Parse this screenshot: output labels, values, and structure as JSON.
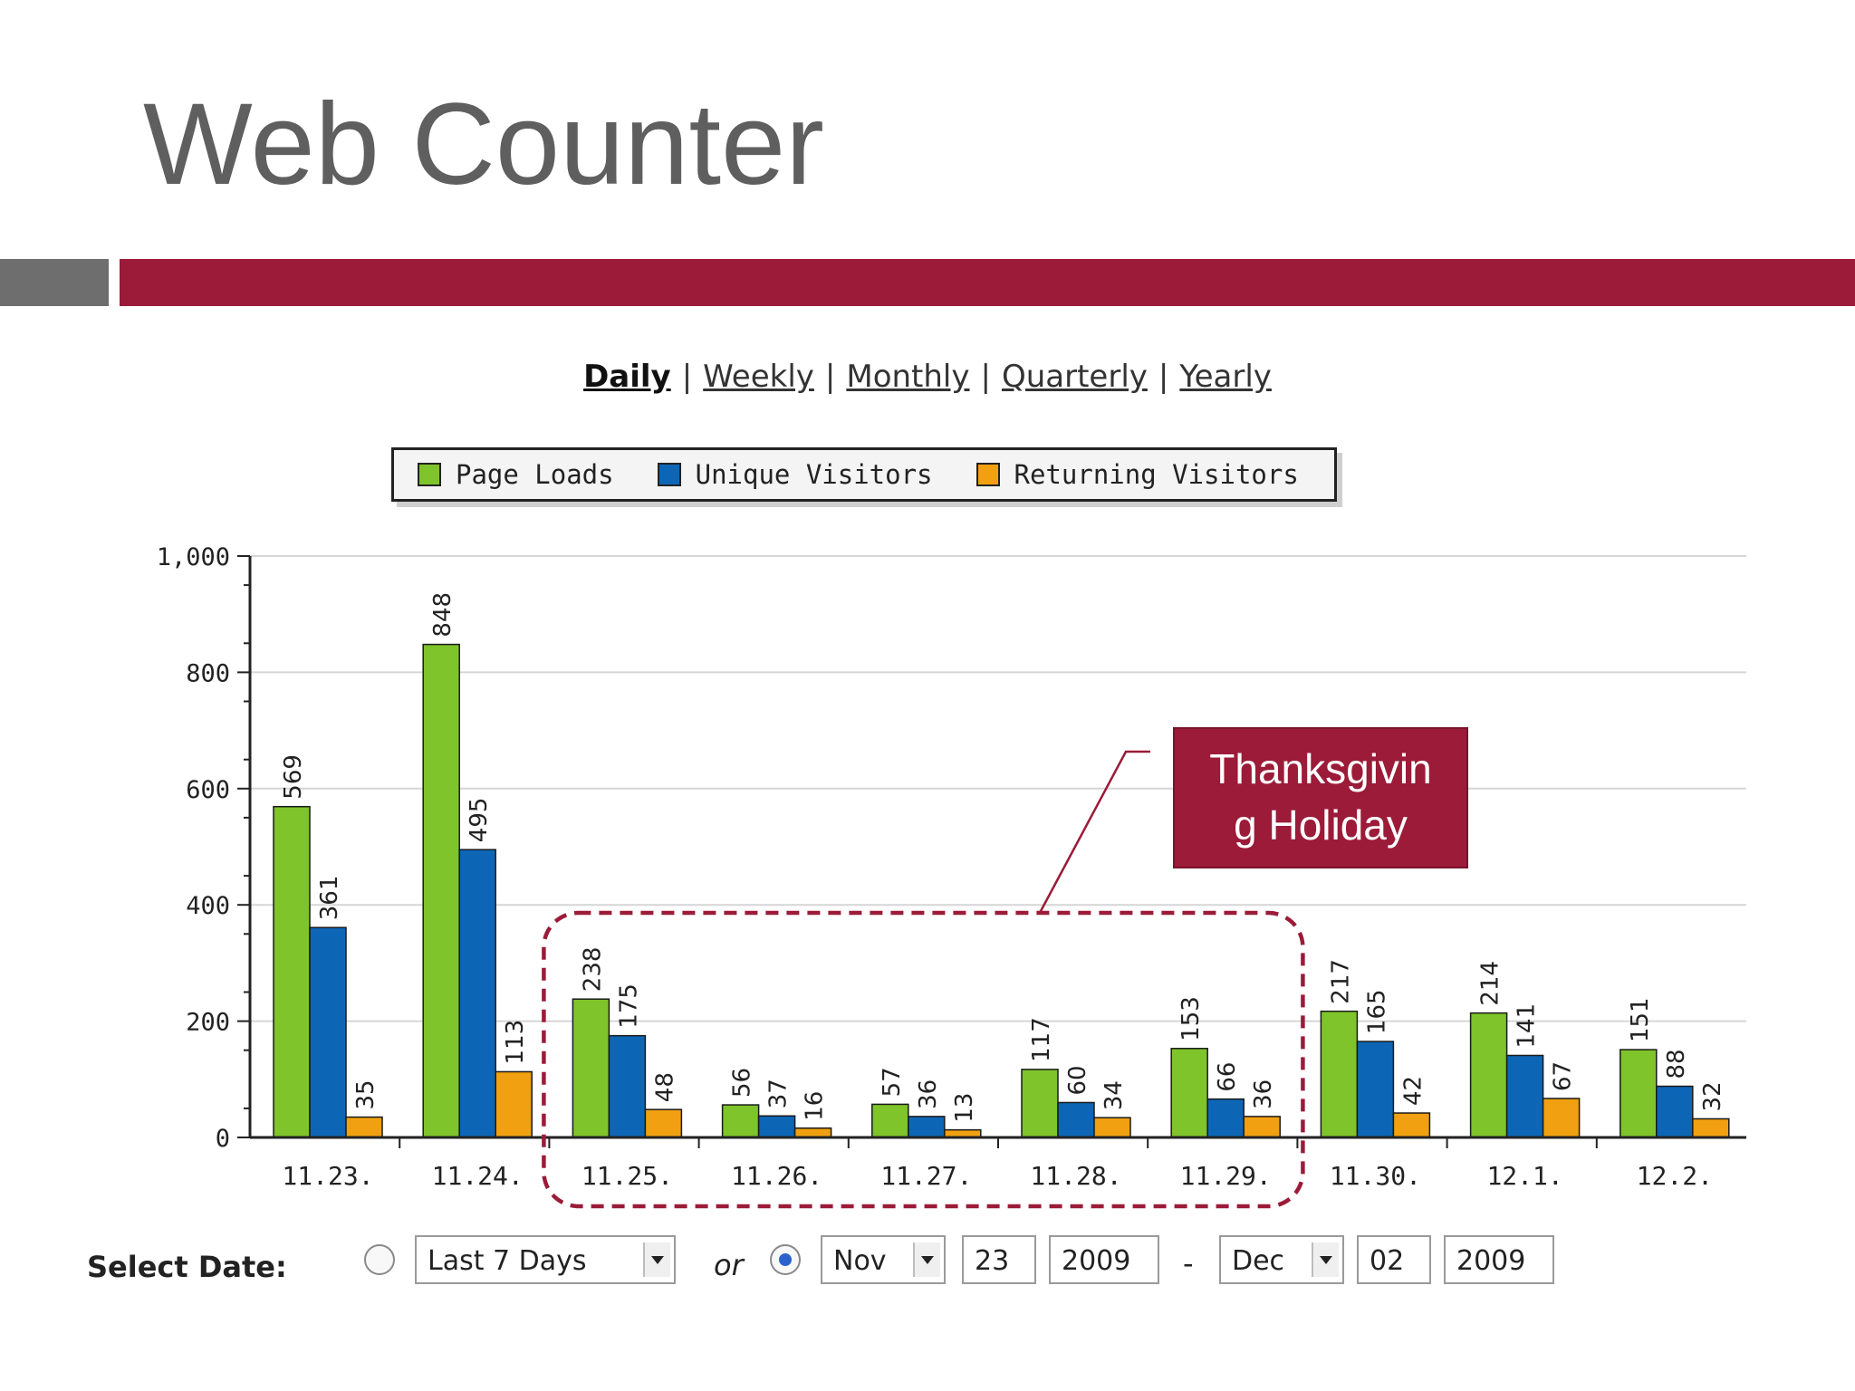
{
  "slide": {
    "title": "Web Counter",
    "colors": {
      "accent_red": "#9b1b38",
      "accent_grey": "#6e6e6e",
      "title_grey": "#5f5f5f"
    }
  },
  "nav": {
    "daily": "Daily",
    "weekly": "Weekly",
    "monthly": "Monthly",
    "quarterly": "Quarterly",
    "yearly": "Yearly",
    "separator": "|",
    "active": "Daily"
  },
  "annotation": {
    "text_line1": "Thanksgivin",
    "text_line2": "g Holiday",
    "highlighted_categories": [
      "11.25.",
      "11.26.",
      "11.27.",
      "11.28.",
      "11.29."
    ]
  },
  "chart_data": {
    "type": "bar",
    "title": "",
    "xlabel": "",
    "ylabel": "",
    "ylim": [
      0,
      1000
    ],
    "yticks": [
      0,
      200,
      400,
      600,
      800,
      1000
    ],
    "ytick_labels": [
      "0",
      "200",
      "400",
      "600",
      "800",
      "1,000"
    ],
    "grid": true,
    "legend_position": "top",
    "categories": [
      "11.23.",
      "11.24.",
      "11.25.",
      "11.26.",
      "11.27.",
      "11.28.",
      "11.29.",
      "11.30.",
      "12.1.",
      "12.2."
    ],
    "series": [
      {
        "name": "Page Loads",
        "color": "#7ec42a",
        "values": [
          569,
          848,
          238,
          56,
          57,
          117,
          153,
          217,
          214,
          151
        ]
      },
      {
        "name": "Unique Visitors",
        "color": "#0d66b5",
        "values": [
          361,
          495,
          175,
          37,
          36,
          60,
          66,
          165,
          141,
          88
        ]
      },
      {
        "name": "Returning Visitors",
        "color": "#f0a010",
        "values": [
          35,
          113,
          48,
          16,
          13,
          34,
          36,
          42,
          67,
          32
        ]
      }
    ]
  },
  "date_controls": {
    "label": "Select Date:",
    "preset_selected": false,
    "preset_value": "Last 7 Days",
    "or_label": "or",
    "range_selected": true,
    "from_month": "Nov",
    "from_day": "23",
    "from_year": "2009",
    "dash": "-",
    "to_month": "Dec",
    "to_day": "02",
    "to_year": "2009"
  }
}
